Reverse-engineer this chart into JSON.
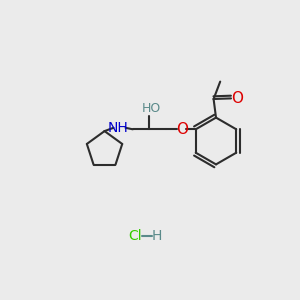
{
  "bg_color": "#ebebeb",
  "bond_color": "#2d2d2d",
  "bond_width": 1.5,
  "O_color": "#dd0000",
  "N_color": "#0000cc",
  "Cl_color": "#33cc00",
  "H_color": "#5a8a8a",
  "font_size": 9,
  "figsize": [
    3.0,
    3.0
  ],
  "dpi": 100,
  "xlim": [
    0,
    10
  ],
  "ylim": [
    0,
    10
  ]
}
